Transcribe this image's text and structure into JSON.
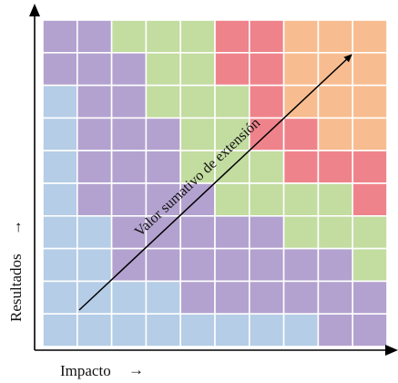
{
  "colors": {
    "blue": "#b5cde6",
    "purple": "#b3a2cf",
    "green": "#c3dca0",
    "red": "#ef838b",
    "orange": "#f7bd90",
    "grid_line": "#ffffff",
    "axis": "#000000"
  },
  "grid": {
    "rows": [
      "PPGGGRROOO",
      "PPPGGRROOO",
      "BPPGGGROOO",
      "BPPPGGRROO",
      "BPPPGGGRRR",
      "BPPPPGGGGR",
      "BBPPPPPGGG",
      "BBPPPPPPPG",
      "BBBBPPPPPP",
      "BBBBBBBBPP"
    ]
  },
  "labels": {
    "x_axis": "Impacto",
    "y_axis": "Resultados",
    "arrow_glyph": "→",
    "diagonal": "Valor sumativo de extensión"
  }
}
